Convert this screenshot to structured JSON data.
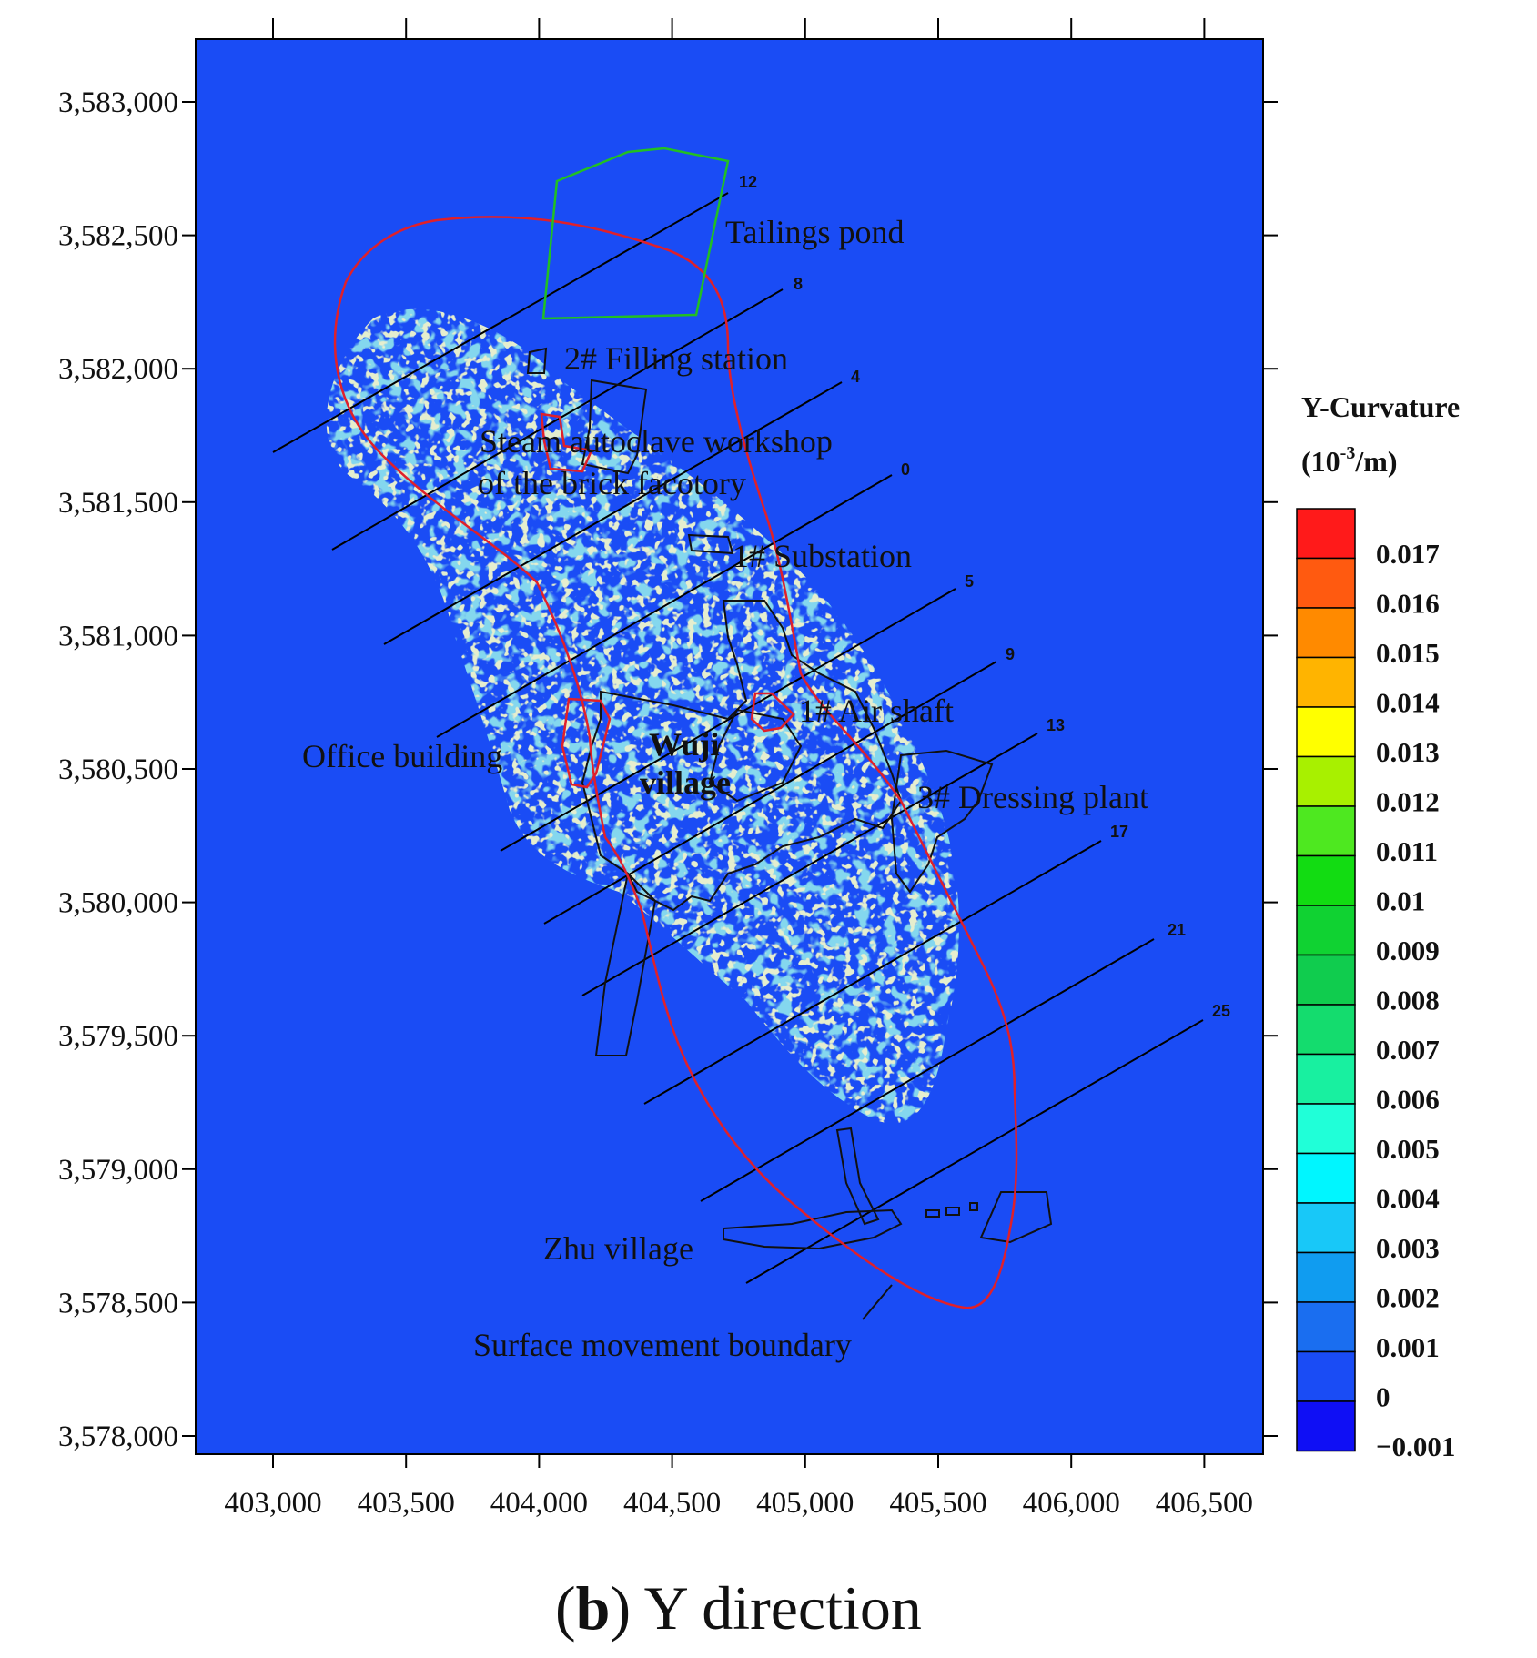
{
  "map": {
    "background_color": "#1a4cf5",
    "y_axis_ticks": [
      "3,583,000",
      "3,582,500",
      "3,582,000",
      "3,581,500",
      "3,581,000",
      "3,580,500",
      "3,580,000",
      "3,579,500",
      "3,579,000",
      "3,578,500",
      "3,578,000"
    ],
    "x_axis_ticks": [
      "403,000",
      "403,500",
      "404,000",
      "404,500",
      "405,000",
      "405,500",
      "406,000",
      "406,500"
    ],
    "labels": {
      "tailings_pond": "Tailings pond",
      "filling_station": "2# Filling station",
      "steam_line1": "Steam autoclave workshop",
      "steam_line2": "of the brick facotory",
      "substation": "1# Substation",
      "air_shaft": "1# Air shaft",
      "office": "Office building",
      "wuji_line1": "Wuji",
      "wuji_line2": "village",
      "dressing": "3# Dressing plant",
      "zhu": "Zhu village",
      "boundary": "Surface movement boundary"
    },
    "survey_line_numbers": [
      "12",
      "8",
      "4",
      "0",
      "5",
      "9",
      "13",
      "17",
      "21",
      "25"
    ],
    "colors": {
      "boundary": "#e0202a",
      "tailings_pond": "#22c022",
      "buildings": "#111111",
      "speckle_fill": "#3aaed8",
      "speckle_edge": "#c8d8a0"
    }
  },
  "legend": {
    "title_line1": "Y-Curvature",
    "title_prefix": "(10",
    "title_exp": "-3",
    "title_suffix": "/m)",
    "labels": [
      "0.017",
      "0.016",
      "0.015",
      "0.014",
      "0.013",
      "0.012",
      "0.011",
      "0.01",
      "0.009",
      "0.008",
      "0.007",
      "0.006",
      "0.005",
      "0.004",
      "0.003",
      "0.002",
      "0.001",
      "0",
      "−0.001"
    ],
    "colors": [
      "#ff1a1a",
      "#ff5a10",
      "#ff8a00",
      "#ffb400",
      "#ffff00",
      "#a8f000",
      "#4ee820",
      "#12dc12",
      "#10d232",
      "#10cc4e",
      "#14dc6e",
      "#18f0a0",
      "#20ffd8",
      "#00f6ff",
      "#18c8f8",
      "#109cf0",
      "#1a6ef0",
      "#1a4cf5",
      "#0f0ff5"
    ]
  },
  "caption": {
    "letter": "b",
    "text": "Y direction"
  }
}
